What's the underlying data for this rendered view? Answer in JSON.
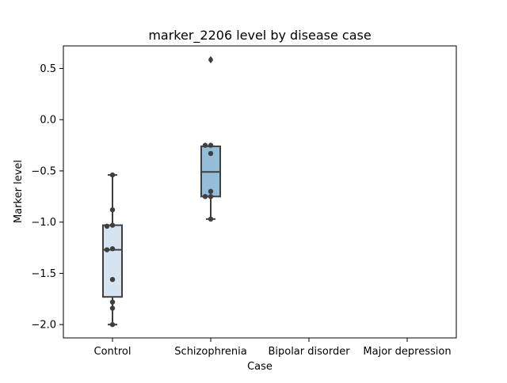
{
  "chart_data": {
    "type": "box",
    "title": "marker_2206 level by disease case",
    "xlabel": "Case",
    "ylabel": "Marker level",
    "categories": [
      "Control",
      "Schizophrenia",
      "Bipolar disorder",
      "Major depression"
    ],
    "ylim": [
      -2.13,
      0.72
    ],
    "yticks": [
      0.5,
      0.0,
      -0.5,
      -1.0,
      -1.5,
      -2.0
    ],
    "ytick_labels": [
      "0.5",
      "0.0",
      "−0.5",
      "−1.0",
      "−1.5",
      "−2.0"
    ],
    "grid": false,
    "legend": "none",
    "boxes": [
      {
        "category": "Control",
        "color": "#d6e4f2",
        "q1": -1.73,
        "median": -1.27,
        "q3": -1.03,
        "whisker_low": -2.0,
        "whisker_high": -0.54,
        "outliers": []
      },
      {
        "category": "Schizophrenia",
        "color": "#93bdd9",
        "q1": -0.75,
        "median": -0.51,
        "q3": -0.26,
        "whisker_low": -0.97,
        "whisker_high": -0.26,
        "outliers": [
          0.59,
          0.58
        ]
      }
    ],
    "points": [
      {
        "category": "Control",
        "values": [
          -0.54,
          -0.88,
          -1.03,
          -1.04,
          -1.26,
          -1.27,
          -1.56,
          -1.78,
          -1.84,
          -2.0
        ]
      },
      {
        "category": "Schizophrenia",
        "values": [
          -0.25,
          -0.25,
          -0.33,
          -0.7,
          -0.75,
          -0.75,
          -0.97
        ]
      }
    ]
  }
}
